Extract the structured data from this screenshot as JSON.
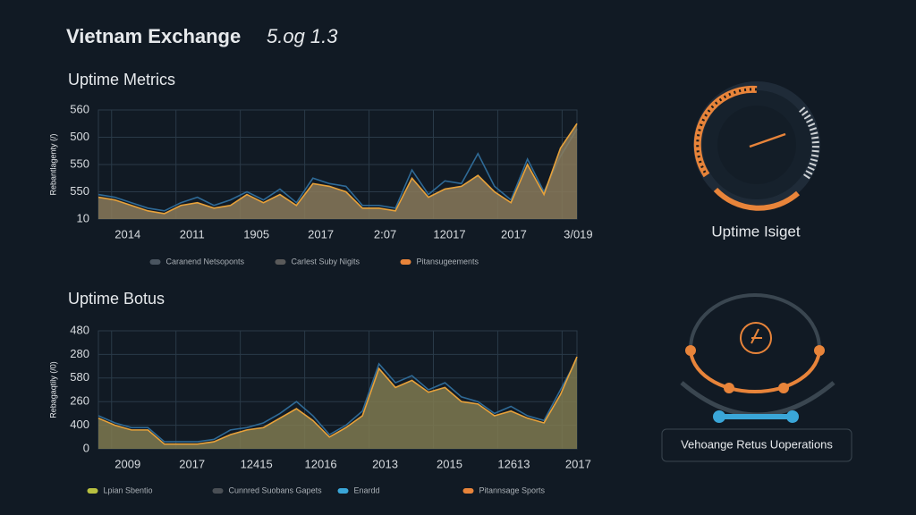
{
  "header": {
    "title": "Vietnam Exchange",
    "version": "5.og 1.3"
  },
  "chart_data": [
    {
      "type": "line",
      "title": "Uptime Metrics",
      "y_label": "Rebantlagenty (/)",
      "x": [
        0,
        1,
        2,
        3,
        4,
        5,
        6,
        7,
        8,
        9,
        10,
        11,
        12,
        13,
        14,
        15,
        16,
        17,
        18,
        19,
        20,
        21,
        22,
        23,
        24,
        25,
        26,
        27,
        28,
        29
      ],
      "xlim": [
        0,
        29
      ],
      "xticks": [
        {
          "value": 0.8,
          "label": "2014"
        },
        {
          "value": 4.7,
          "label": "2011"
        },
        {
          "value": 8.6,
          "label": "1905"
        },
        {
          "value": 12.5,
          "label": "2017"
        },
        {
          "value": 16.4,
          "label": "2:07"
        },
        {
          "value": 20.3,
          "label": "12017"
        },
        {
          "value": 24.2,
          "label": "2017"
        },
        {
          "value": 28.1,
          "label": "3/019"
        }
      ],
      "ylim": [
        0,
        4
      ],
      "yticks": [
        {
          "value": 0,
          "label": "10"
        },
        {
          "value": 1,
          "label": "550"
        },
        {
          "value": 2,
          "label": "550"
        },
        {
          "value": 3,
          "label": "500"
        },
        {
          "value": 4,
          "label": "560"
        }
      ],
      "grid": true,
      "series": [
        {
          "color": "#2f6a96",
          "values": [
            0.9,
            0.8,
            0.6,
            0.4,
            0.3,
            0.6,
            0.8,
            0.5,
            0.7,
            1.0,
            0.7,
            1.1,
            0.6,
            1.5,
            1.3,
            1.2,
            0.5,
            0.5,
            0.4,
            1.8,
            0.9,
            1.4,
            1.3,
            2.4,
            1.2,
            0.7,
            2.2,
            1.0,
            2.3,
            3.3
          ]
        },
        {
          "color": "#e8a23a",
          "fill": "#8a7a5a",
          "values": [
            0.8,
            0.7,
            0.5,
            0.3,
            0.2,
            0.5,
            0.6,
            0.4,
            0.5,
            0.9,
            0.6,
            0.9,
            0.5,
            1.3,
            1.2,
            1.0,
            0.4,
            0.4,
            0.3,
            1.5,
            0.8,
            1.1,
            1.2,
            1.6,
            1.0,
            0.6,
            2.0,
            0.9,
            2.6,
            3.5
          ]
        }
      ],
      "legend": [
        {
          "name": "Caranend Netsoponts",
          "color": "#4a5560"
        },
        {
          "name": "Carlest Suby Nigits",
          "color": "#5a5a5a"
        },
        {
          "name": "Pitansugeements",
          "color": "#e8843a"
        }
      ]
    },
    {
      "type": "line",
      "title": "Uptime Botus",
      "y_label": "Rebagaqtily (/0)",
      "x": [
        0,
        1,
        2,
        3,
        4,
        5,
        6,
        7,
        8,
        9,
        10,
        11,
        12,
        13,
        14,
        15,
        16,
        17,
        18,
        19,
        20,
        21,
        22,
        23,
        24,
        25,
        26,
        27,
        28,
        29
      ],
      "xlim": [
        0,
        29
      ],
      "xticks": [
        {
          "value": 0.8,
          "label": "2009"
        },
        {
          "value": 4.7,
          "label": "2017"
        },
        {
          "value": 8.6,
          "label": "12415"
        },
        {
          "value": 12.5,
          "label": "12016"
        },
        {
          "value": 16.4,
          "label": "2013"
        },
        {
          "value": 20.3,
          "label": "2015"
        },
        {
          "value": 24.2,
          "label": "12613"
        },
        {
          "value": 28.1,
          "label": "2017"
        }
      ],
      "ylim": [
        0,
        5
      ],
      "yticks": [
        {
          "value": 0,
          "label": "0"
        },
        {
          "value": 1,
          "label": "400"
        },
        {
          "value": 2,
          "label": "260"
        },
        {
          "value": 3,
          "label": "580"
        },
        {
          "value": 4,
          "label": "280"
        },
        {
          "value": 5,
          "label": "480"
        }
      ],
      "grid": true,
      "series": [
        {
          "color": "#2f6a96",
          "values": [
            1.4,
            1.1,
            0.9,
            0.9,
            0.3,
            0.3,
            0.3,
            0.4,
            0.8,
            0.9,
            1.1,
            1.5,
            2.0,
            1.4,
            0.6,
            1.0,
            1.6,
            3.6,
            2.8,
            3.1,
            2.5,
            2.8,
            2.2,
            2.0,
            1.5,
            1.8,
            1.4,
            1.2,
            2.5,
            3.8
          ]
        },
        {
          "color": "#e8a23a",
          "fill": "#7f7a50",
          "values": [
            1.3,
            1.0,
            0.8,
            0.8,
            0.2,
            0.2,
            0.2,
            0.3,
            0.6,
            0.8,
            0.9,
            1.3,
            1.7,
            1.2,
            0.5,
            0.9,
            1.4,
            3.4,
            2.6,
            2.9,
            2.4,
            2.6,
            2.0,
            1.9,
            1.4,
            1.6,
            1.3,
            1.1,
            2.3,
            3.9
          ]
        }
      ],
      "legend": [
        {
          "name": "Lpian Sbentio",
          "color": "#b8c040"
        },
        {
          "name": "Cunnred Suobans Gapets",
          "color": "#4a4f55"
        },
        {
          "name": "Enardd",
          "color": "#3aa6d8"
        },
        {
          "name": "Pitannsage Sports",
          "color": "#e8843a"
        }
      ]
    }
  ],
  "widgets": [
    {
      "label": "Uptime Isiget"
    },
    {
      "label": "Vehoange Retus Uoperations"
    }
  ]
}
